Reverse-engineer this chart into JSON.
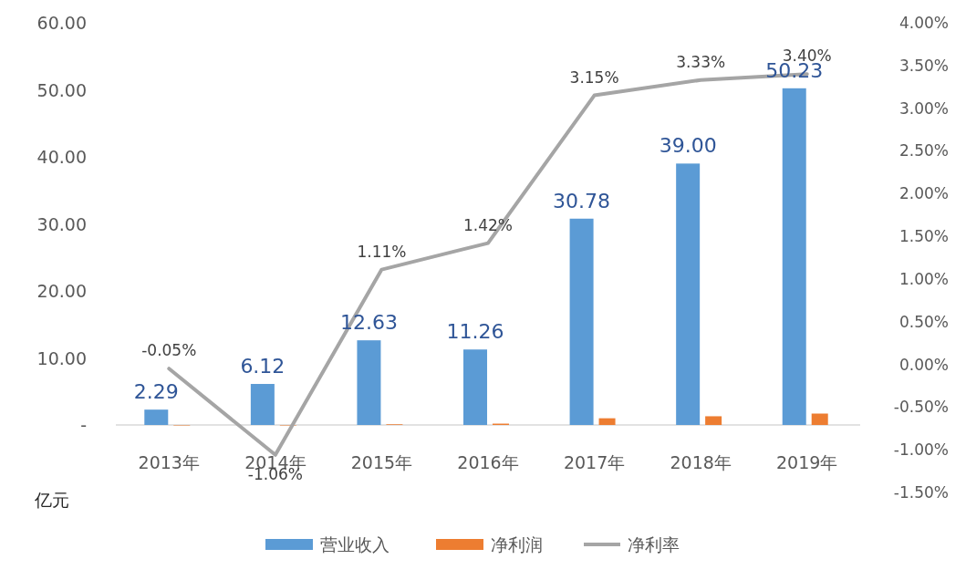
{
  "chart_data": {
    "type": "bar",
    "ylabel": "亿元",
    "categories": [
      "2013年",
      "2014年",
      "2015年",
      "2016年",
      "2017年",
      "2018年",
      "2019年"
    ],
    "series": [
      {
        "name": "营业收入",
        "color": "#5b9bd5",
        "values": [
          2.29,
          6.12,
          12.63,
          11.26,
          30.78,
          39.0,
          50.23
        ],
        "value_labels": [
          "2.29",
          "6.12",
          "12.63",
          "11.26",
          "30.78",
          "39.00",
          "50.23"
        ]
      },
      {
        "name": "净利润",
        "color": "#ed7d31",
        "values": [
          0,
          0,
          0.1,
          0.2,
          1.0,
          1.3,
          1.7
        ]
      },
      {
        "name": "净利率",
        "type": "line",
        "axis": "y2",
        "color": "#a5a5a5",
        "values": [
          -0.05,
          -1.06,
          1.11,
          1.42,
          3.15,
          3.33,
          3.4
        ],
        "value_labels": [
          "-0.05%",
          "-1.06%",
          "1.11%",
          "1.42%",
          "3.15%",
          "3.33%",
          "3.40%"
        ]
      }
    ],
    "ylim": [
      0,
      60
    ],
    "yticks": [
      {
        "value": 0,
        "label": "-"
      },
      {
        "value": 10,
        "label": "10.00"
      },
      {
        "value": 20,
        "label": "20.00"
      },
      {
        "value": 30,
        "label": "30.00"
      },
      {
        "value": 40,
        "label": "40.00"
      },
      {
        "value": 50,
        "label": "50.00"
      },
      {
        "value": 60,
        "label": "60.00"
      }
    ],
    "y2lim": [
      -1.5,
      4.0
    ],
    "y2ticks": [
      {
        "value": -1.5,
        "label": "-1.50%"
      },
      {
        "value": -1.0,
        "label": "-1.00%"
      },
      {
        "value": -0.5,
        "label": "-0.50%"
      },
      {
        "value": 0,
        "label": "0.00%"
      },
      {
        "value": 0.5,
        "label": "0.50%"
      },
      {
        "value": 1.0,
        "label": "1.00%"
      },
      {
        "value": 1.5,
        "label": "1.50%"
      },
      {
        "value": 2.0,
        "label": "2.00%"
      },
      {
        "value": 2.5,
        "label": "2.50%"
      },
      {
        "value": 3.0,
        "label": "3.00%"
      },
      {
        "value": 3.5,
        "label": "3.50%"
      },
      {
        "value": 4.0,
        "label": "4.00%"
      }
    ],
    "legend": "bottom"
  }
}
